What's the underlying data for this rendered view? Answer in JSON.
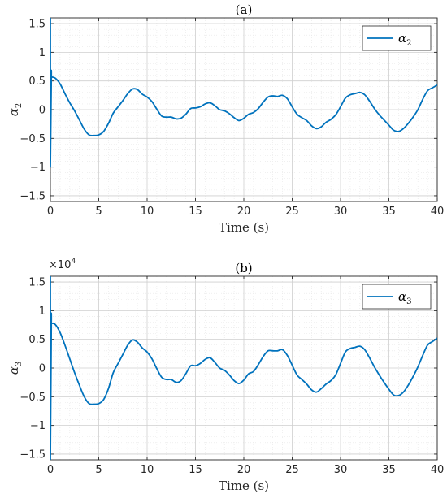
{
  "colors": {
    "series": "#0072bd",
    "axis": "#262626",
    "grid": "#cfcfcf"
  },
  "chart_data": [
    {
      "type": "line",
      "title": "(a)",
      "xlabel": "Time (s)",
      "ylabel_base": "α",
      "ylabel_sub": "2",
      "xlim": [
        0,
        40
      ],
      "ylim": [
        -1.6,
        1.6
      ],
      "xticks": [
        0,
        5,
        10,
        15,
        20,
        25,
        30,
        35,
        40
      ],
      "yticks": [
        -1.5,
        -1,
        -0.5,
        0,
        0.5,
        1,
        1.5
      ],
      "ytick_labels": [
        "-1.5",
        "-1",
        "-0.5",
        "0",
        "0.5",
        "1",
        "1.5"
      ],
      "exponent_label": "",
      "grid": true,
      "legend_position": "top-right",
      "series": [
        {
          "name_base": "α",
          "name_sub": "2",
          "spike": [
            [
              0.0,
              1.6
            ],
            [
              0.0,
              -1.0
            ],
            [
              0.1,
              0.57
            ]
          ],
          "x": [
            0.1,
            0.5,
            1,
            1.5,
            2,
            2.5,
            3,
            3.5,
            4,
            4.5,
            5,
            5.5,
            6,
            6.5,
            7,
            7.5,
            8,
            8.5,
            9,
            9.5,
            10,
            10.5,
            11,
            11.5,
            12,
            12.5,
            13,
            13.5,
            14,
            14.5,
            15,
            15.5,
            16,
            16.5,
            17,
            17.5,
            18,
            18.5,
            19,
            19.5,
            20,
            20.5,
            21,
            21.5,
            22,
            22.5,
            23,
            23.5,
            24,
            24.5,
            25,
            25.5,
            26,
            26.5,
            27,
            27.5,
            28,
            28.5,
            29,
            29.5,
            30,
            30.5,
            31,
            31.5,
            32,
            32.5,
            33,
            33.5,
            34,
            34.5,
            35,
            35.5,
            36,
            36.5,
            37,
            37.5,
            38,
            38.5,
            39,
            39.5,
            40
          ],
          "y": [
            0.57,
            0.55,
            0.45,
            0.28,
            0.12,
            -0.02,
            -0.18,
            -0.34,
            -0.44,
            -0.45,
            -0.44,
            -0.38,
            -0.24,
            -0.06,
            0.05,
            0.16,
            0.28,
            0.36,
            0.35,
            0.27,
            0.22,
            0.14,
            0.01,
            -0.11,
            -0.13,
            -0.13,
            -0.16,
            -0.15,
            -0.08,
            0.02,
            0.03,
            0.05,
            0.1,
            0.12,
            0.07,
            0.0,
            -0.02,
            -0.07,
            -0.14,
            -0.19,
            -0.15,
            -0.08,
            -0.05,
            0.02,
            0.13,
            0.22,
            0.24,
            0.23,
            0.25,
            0.19,
            0.05,
            -0.08,
            -0.14,
            -0.19,
            -0.28,
            -0.33,
            -0.3,
            -0.22,
            -0.17,
            -0.09,
            0.05,
            0.2,
            0.26,
            0.28,
            0.3,
            0.26,
            0.15,
            0.02,
            -0.09,
            -0.18,
            -0.27,
            -0.36,
            -0.38,
            -0.33,
            -0.24,
            -0.13,
            0.0,
            0.18,
            0.33,
            0.38,
            0.43
          ]
        }
      ]
    },
    {
      "type": "line",
      "title": "(b)",
      "xlabel": "Time (s)",
      "ylabel_base": "α",
      "ylabel_sub": "3",
      "xlim": [
        0,
        40
      ],
      "ylim": [
        -1.6,
        1.6
      ],
      "xticks": [
        0,
        5,
        10,
        15,
        20,
        25,
        30,
        35,
        40
      ],
      "yticks": [
        -1.5,
        -1,
        -0.5,
        0,
        0.5,
        1,
        1.5
      ],
      "ytick_labels": [
        "-1.5",
        "-1",
        "-0.5",
        "0",
        "0.5",
        "1",
        "1.5"
      ],
      "exponent_label": "×10",
      "exponent_power": "4",
      "grid": true,
      "legend_position": "top-right",
      "series": [
        {
          "name_base": "α",
          "name_sub": "3",
          "spike": [
            [
              0.0,
              1.6
            ],
            [
              0.0,
              -1.6
            ],
            [
              0.1,
              0.78
            ]
          ],
          "x": [
            0.1,
            0.5,
            1,
            1.5,
            2,
            2.5,
            3,
            3.5,
            4,
            4.5,
            5,
            5.5,
            6,
            6.5,
            7,
            7.5,
            8,
            8.5,
            9,
            9.5,
            10,
            10.5,
            11,
            11.5,
            12,
            12.5,
            13,
            13.5,
            14,
            14.5,
            15,
            15.5,
            16,
            16.5,
            17,
            17.5,
            18,
            18.5,
            19,
            19.5,
            20,
            20.5,
            21,
            21.5,
            22,
            22.5,
            23,
            23.5,
            24,
            24.5,
            25,
            25.5,
            26,
            26.5,
            27,
            27.5,
            28,
            28.5,
            29,
            29.5,
            30,
            30.5,
            31,
            31.5,
            32,
            32.5,
            33,
            33.5,
            34,
            34.5,
            35,
            35.5,
            36,
            36.5,
            37,
            37.5,
            38,
            38.5,
            39,
            39.5,
            40
          ],
          "y": [
            0.78,
            0.76,
            0.62,
            0.4,
            0.16,
            -0.08,
            -0.3,
            -0.5,
            -0.62,
            -0.63,
            -0.62,
            -0.55,
            -0.36,
            -0.08,
            0.08,
            0.24,
            0.4,
            0.49,
            0.45,
            0.35,
            0.28,
            0.16,
            -0.01,
            -0.16,
            -0.2,
            -0.2,
            -0.25,
            -0.22,
            -0.1,
            0.04,
            0.04,
            0.08,
            0.15,
            0.18,
            0.1,
            0.0,
            -0.04,
            -0.12,
            -0.22,
            -0.27,
            -0.21,
            -0.1,
            -0.06,
            0.06,
            0.2,
            0.3,
            0.3,
            0.3,
            0.32,
            0.22,
            0.05,
            -0.12,
            -0.2,
            -0.28,
            -0.38,
            -0.42,
            -0.36,
            -0.28,
            -0.22,
            -0.12,
            0.08,
            0.28,
            0.34,
            0.36,
            0.38,
            0.32,
            0.18,
            0.02,
            -0.12,
            -0.25,
            -0.37,
            -0.47,
            -0.48,
            -0.42,
            -0.3,
            -0.15,
            0.02,
            0.22,
            0.4,
            0.46,
            0.52
          ]
        }
      ]
    }
  ]
}
